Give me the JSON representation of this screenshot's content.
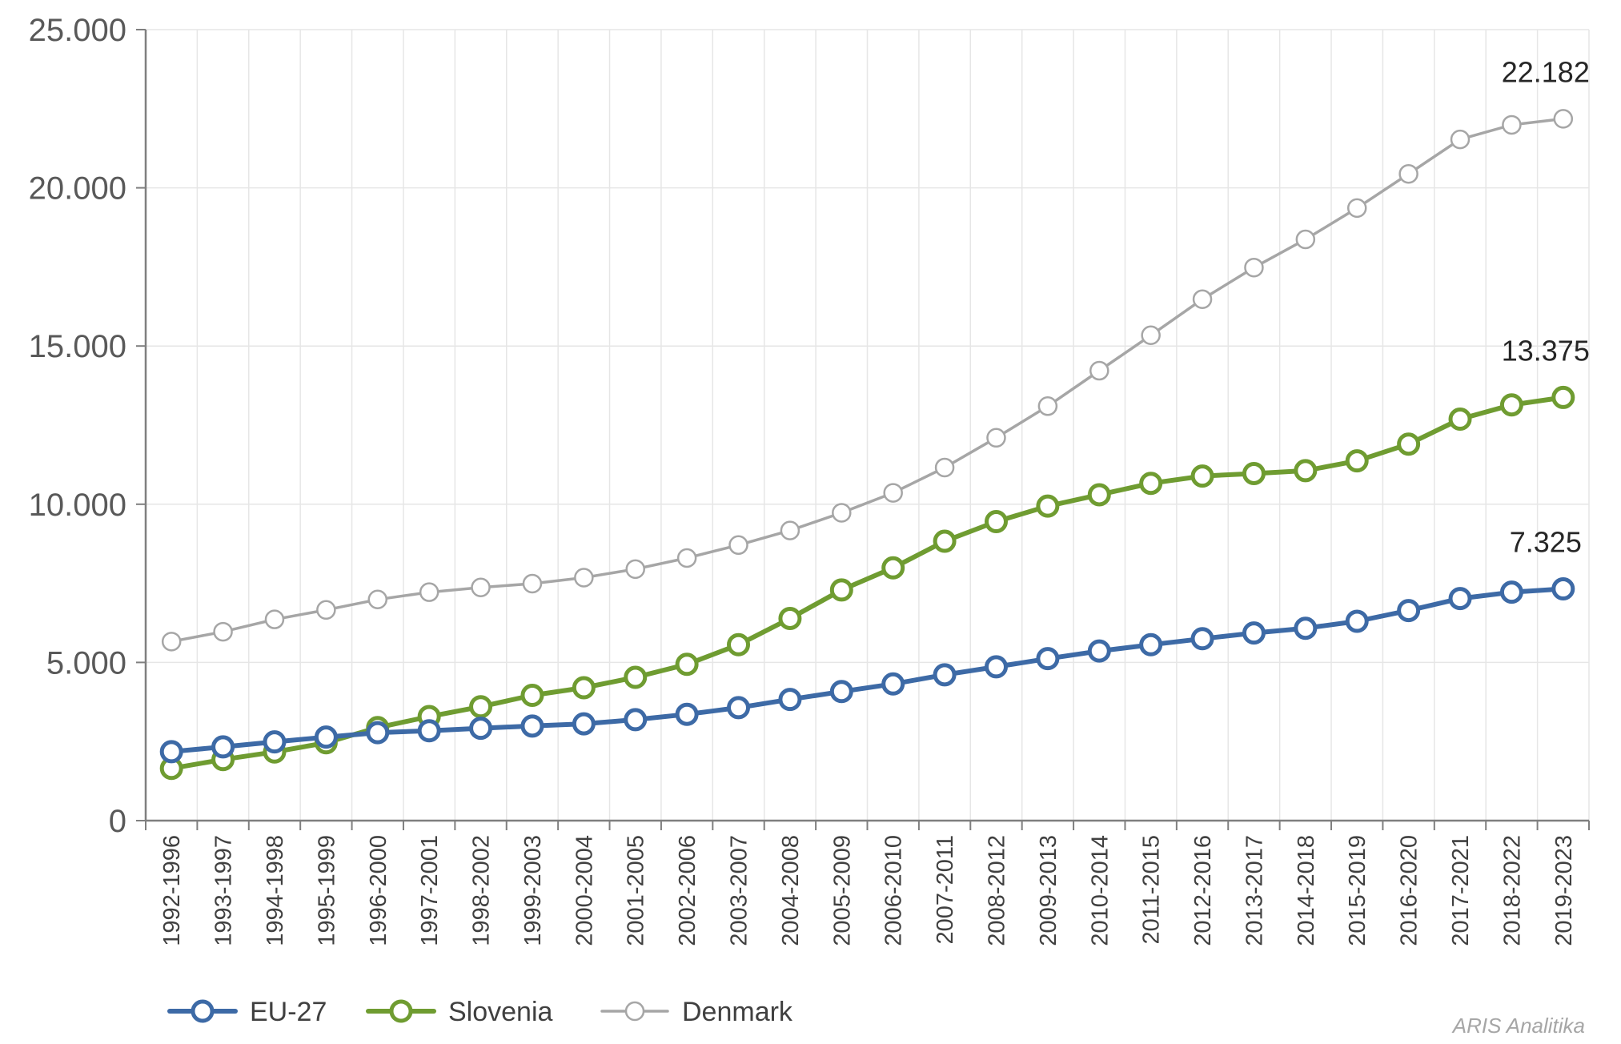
{
  "chart_data": {
    "type": "line",
    "title": "",
    "xlabel": "",
    "ylabel": "",
    "ylim": [
      0,
      25000
    ],
    "yticks": [
      0,
      5000,
      10000,
      15000,
      20000,
      25000
    ],
    "ytick_labels": [
      "0",
      "5.000",
      "10.000",
      "15.000",
      "20.000",
      "25.000"
    ],
    "grid": true,
    "legend_position": "bottom-left",
    "categories": [
      "1992-1996",
      "1993-1997",
      "1994-1998",
      "1995-1999",
      "1996-2000",
      "1997-2001",
      "1998-2002",
      "1999-2003",
      "2000-2004",
      "2001-2005",
      "2002-2006",
      "2003-2007",
      "2004-2008",
      "2005-2009",
      "2006-2010",
      "2007-2011",
      "2008-2012",
      "2009-2013",
      "2010-2014",
      "2011-2015",
      "2012-2016",
      "2013-2017",
      "2014-2018",
      "2015-2019",
      "2016-2020",
      "2017-2021",
      "2018-2022",
      "2019-2023"
    ],
    "series": [
      {
        "name": "EU-27",
        "color": "#3d6aa6",
        "values": [
          2180,
          2330,
          2490,
          2640,
          2780,
          2840,
          2920,
          2990,
          3060,
          3190,
          3360,
          3570,
          3830,
          4080,
          4320,
          4610,
          4860,
          5120,
          5360,
          5560,
          5750,
          5930,
          6080,
          6300,
          6640,
          7020,
          7220,
          7325
        ],
        "end_label": "7.325"
      },
      {
        "name": "Slovenia",
        "color": "#6f9c31",
        "values": [
          1650,
          1930,
          2170,
          2460,
          2940,
          3290,
          3600,
          3960,
          4200,
          4530,
          4940,
          5560,
          6390,
          7290,
          7990,
          8830,
          9450,
          9940,
          10300,
          10660,
          10890,
          10970,
          11060,
          11370,
          11900,
          12690,
          13140,
          13375
        ],
        "end_label": "13.375"
      },
      {
        "name": "Denmark",
        "color": "#a6a6a6",
        "values": [
          5660,
          5970,
          6360,
          6660,
          6990,
          7220,
          7370,
          7490,
          7680,
          7950,
          8300,
          8710,
          9170,
          9730,
          10360,
          11160,
          12100,
          13100,
          14220,
          15340,
          16480,
          17480,
          18370,
          19360,
          20440,
          21530,
          21990,
          22182
        ],
        "end_label": "22.182"
      }
    ],
    "watermark": "ARIS Analitika"
  }
}
